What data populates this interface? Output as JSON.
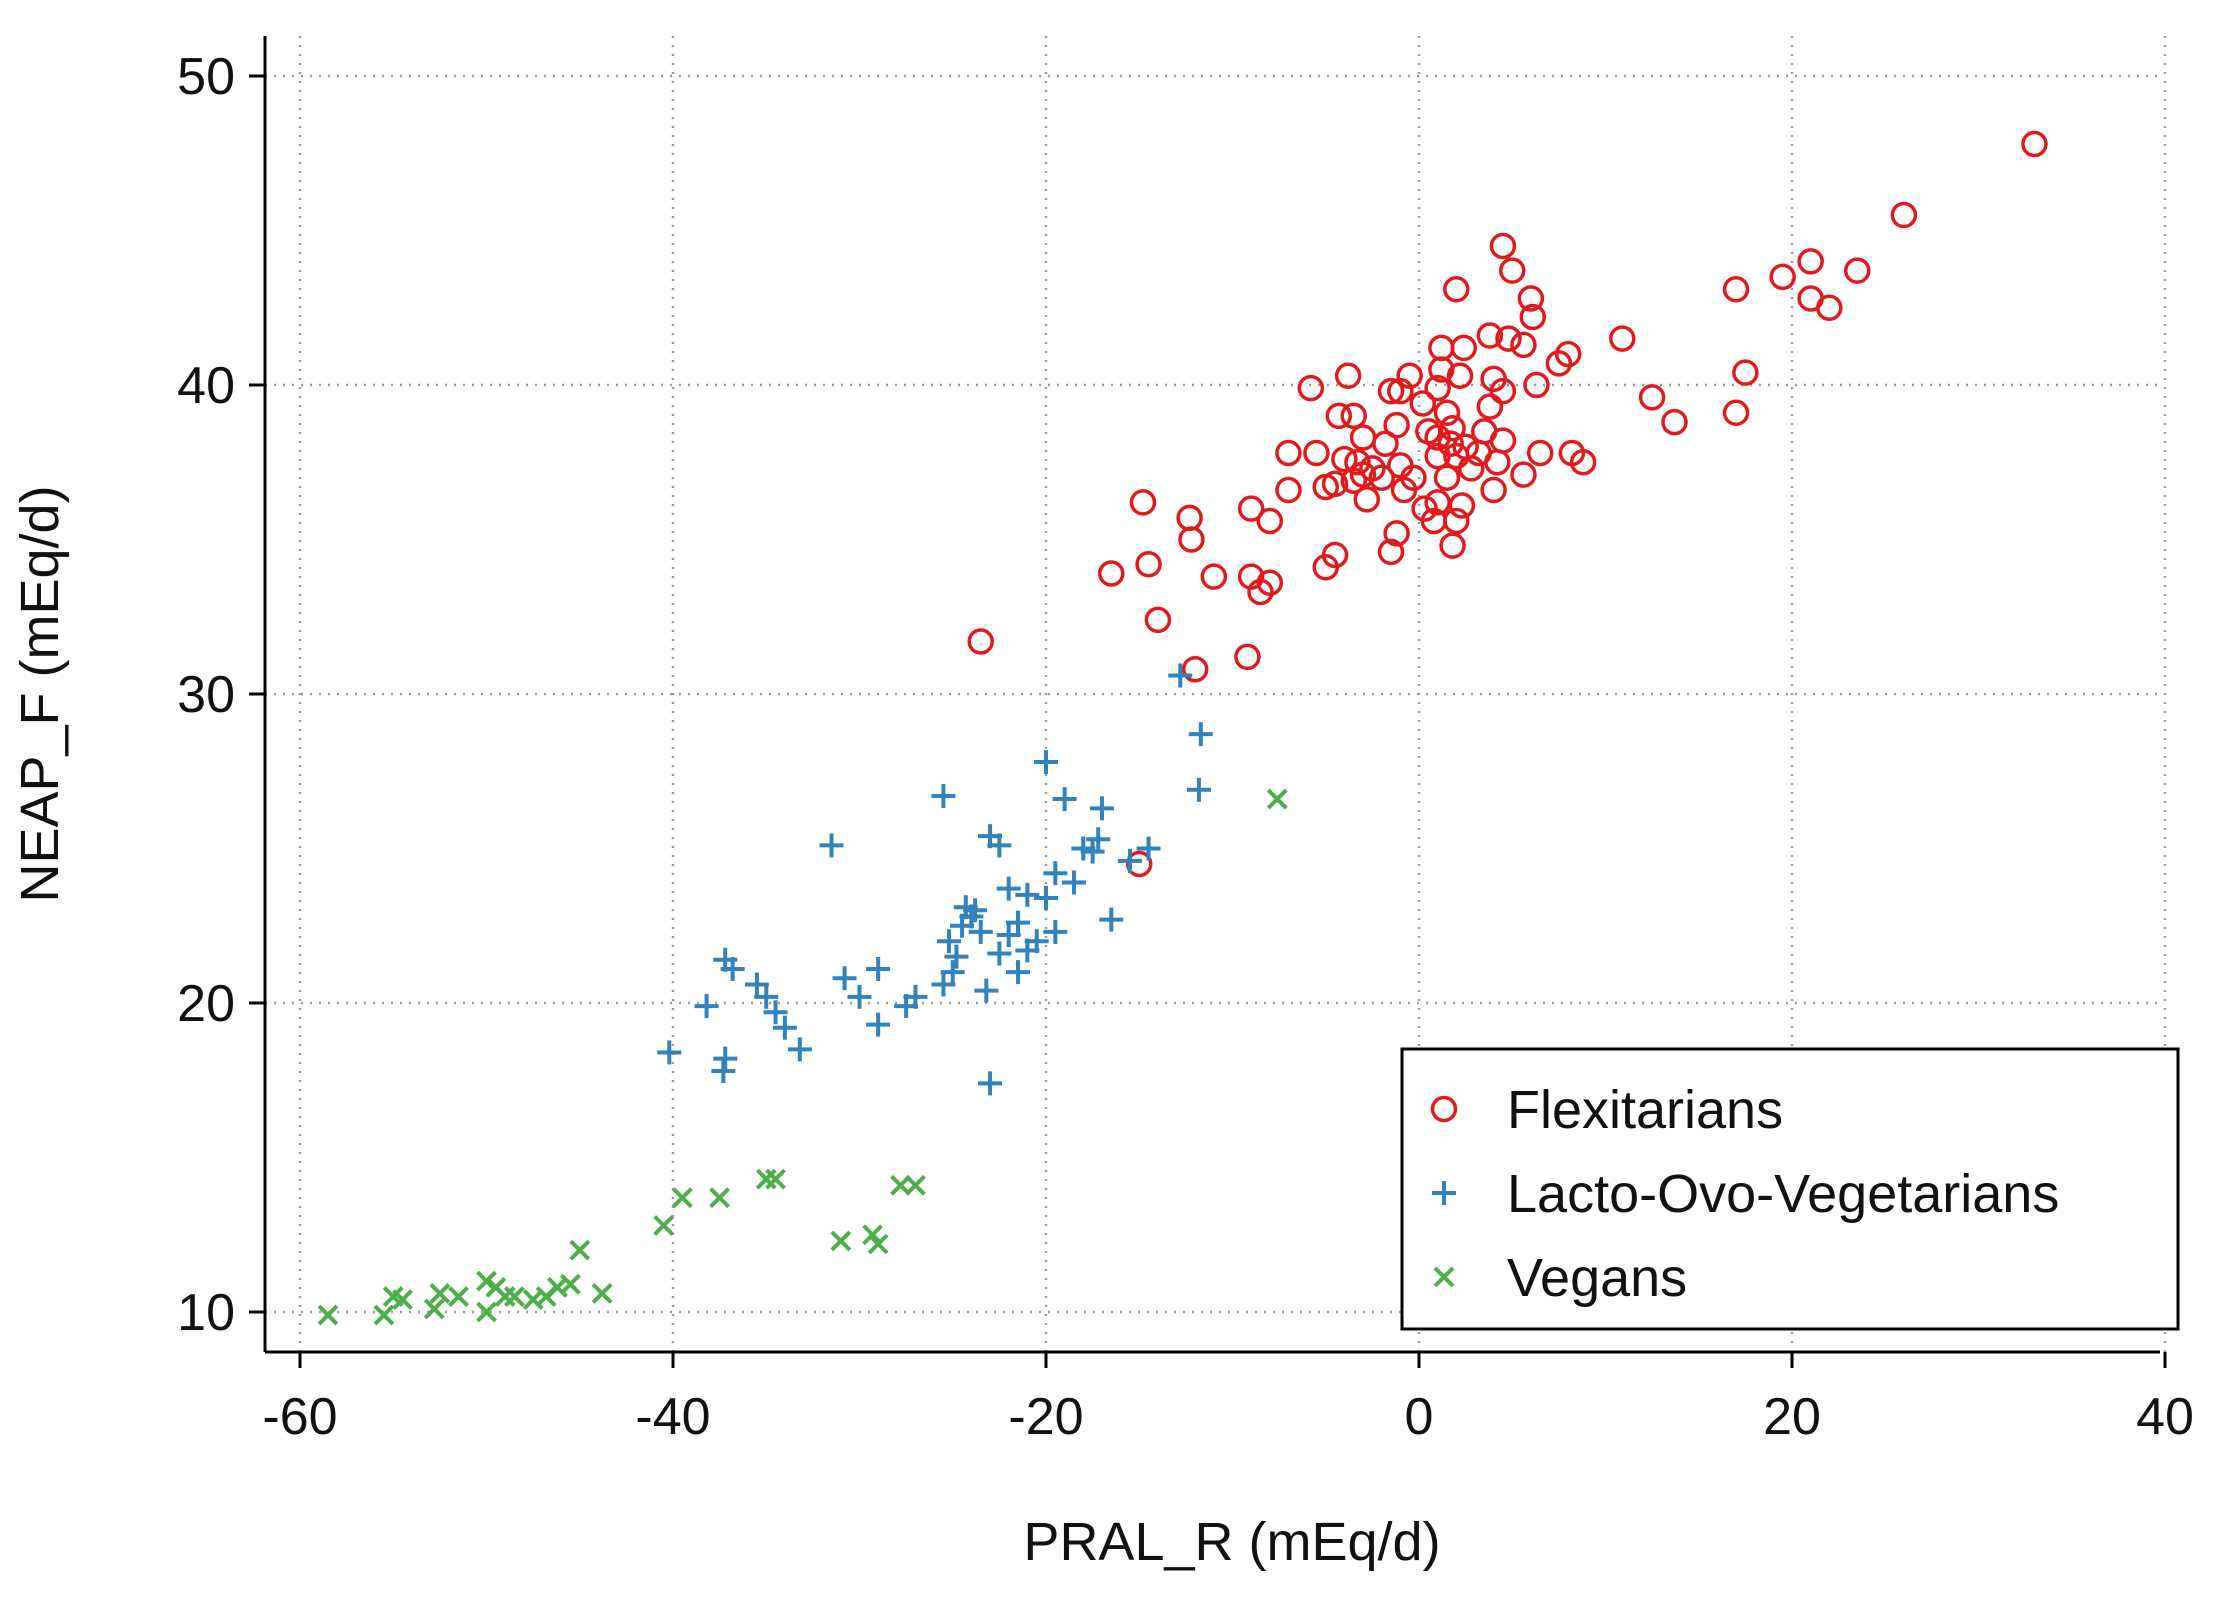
{
  "chart_data": {
    "type": "scatter",
    "xlabel": "PRAL_R (mEq/d)",
    "ylabel": "NEAP_F (mEq/d)",
    "xlim": [
      -62,
      40
    ],
    "ylim": [
      8.5,
      51.5
    ],
    "xticks": [
      -60,
      -40,
      -20,
      0,
      20,
      40
    ],
    "yticks": [
      10,
      20,
      30,
      40,
      50
    ],
    "grid": true,
    "legend_position": "bottom-right",
    "series": [
      {
        "name": "Flexitarians",
        "marker": "circle",
        "color": "#e31a1c",
        "points": [
          [
            33.0,
            47.8
          ],
          [
            26.0,
            45.5
          ],
          [
            23.5,
            43.7
          ],
          [
            22.0,
            42.5
          ],
          [
            21.0,
            44.0
          ],
          [
            21.0,
            42.8
          ],
          [
            19.5,
            43.5
          ],
          [
            17.5,
            40.4
          ],
          [
            17.0,
            43.1
          ],
          [
            17.0,
            39.1
          ],
          [
            13.7,
            38.8
          ],
          [
            12.5,
            39.6
          ],
          [
            10.9,
            41.5
          ],
          [
            8.8,
            37.5
          ],
          [
            8.2,
            37.8
          ],
          [
            8.0,
            41.0
          ],
          [
            7.5,
            40.7
          ],
          [
            6.5,
            37.8
          ],
          [
            6.3,
            40.0
          ],
          [
            6.1,
            42.2
          ],
          [
            6.0,
            42.8
          ],
          [
            5.6,
            37.1
          ],
          [
            5.6,
            41.3
          ],
          [
            5.0,
            43.7
          ],
          [
            4.8,
            41.5
          ],
          [
            4.5,
            44.5
          ],
          [
            4.5,
            39.8
          ],
          [
            4.5,
            38.2
          ],
          [
            4.2,
            37.5
          ],
          [
            4.0,
            40.2
          ],
          [
            4.0,
            36.6
          ],
          [
            3.8,
            41.6
          ],
          [
            3.8,
            39.3
          ],
          [
            3.5,
            38.5
          ],
          [
            3.2,
            37.8
          ],
          [
            2.8,
            37.3
          ],
          [
            2.5,
            38.0
          ],
          [
            2.4,
            41.2
          ],
          [
            2.3,
            36.1
          ],
          [
            2.2,
            40.3
          ],
          [
            2.0,
            37.7
          ],
          [
            2.0,
            35.6
          ],
          [
            2.0,
            43.1
          ],
          [
            1.8,
            34.8
          ],
          [
            1.8,
            38.6
          ],
          [
            1.7,
            38.1
          ],
          [
            1.5,
            39.1
          ],
          [
            1.5,
            37.0
          ],
          [
            1.2,
            40.5
          ],
          [
            1.2,
            41.2
          ],
          [
            1.0,
            38.3
          ],
          [
            1.0,
            36.2
          ],
          [
            1.0,
            39.9
          ],
          [
            1.0,
            37.7
          ],
          [
            0.8,
            35.6
          ],
          [
            0.5,
            38.5
          ],
          [
            0.3,
            36.0
          ],
          [
            0.2,
            39.4
          ],
          [
            -0.3,
            37.0
          ],
          [
            -0.5,
            40.3
          ],
          [
            -0.8,
            36.6
          ],
          [
            -1.0,
            37.4
          ],
          [
            -1.0,
            39.8
          ],
          [
            -1.2,
            35.2
          ],
          [
            -1.2,
            38.7
          ],
          [
            -1.5,
            39.8
          ],
          [
            -1.5,
            34.6
          ],
          [
            -1.8,
            38.1
          ],
          [
            -2.0,
            37.0
          ],
          [
            -2.5,
            37.3
          ],
          [
            -2.8,
            36.3
          ],
          [
            -3.0,
            37.1
          ],
          [
            -3.0,
            38.3
          ],
          [
            -3.3,
            37.5
          ],
          [
            -3.5,
            36.9
          ],
          [
            -3.5,
            39.0
          ],
          [
            -3.8,
            40.3
          ],
          [
            -4.0,
            37.6
          ],
          [
            -4.3,
            39.0
          ],
          [
            -4.5,
            34.5
          ],
          [
            -4.5,
            36.8
          ],
          [
            -5.0,
            34.1
          ],
          [
            -5.0,
            36.7
          ],
          [
            -5.5,
            37.8
          ],
          [
            -5.8,
            39.9
          ],
          [
            -7.0,
            37.8
          ],
          [
            -7.0,
            36.6
          ],
          [
            -8.0,
            33.6
          ],
          [
            -8.5,
            33.3
          ],
          [
            -9.0,
            33.8
          ],
          [
            -8.0,
            35.6
          ],
          [
            -9.2,
            31.2
          ],
          [
            -9.0,
            36.0
          ],
          [
            -11.0,
            33.8
          ],
          [
            -12.0,
            30.8
          ],
          [
            -12.2,
            35.0
          ],
          [
            -12.3,
            35.7
          ],
          [
            -14.0,
            32.4
          ],
          [
            -14.5,
            34.2
          ],
          [
            -14.8,
            36.2
          ],
          [
            -16.5,
            33.9
          ],
          [
            -23.5,
            31.7
          ],
          [
            -15.0,
            24.5
          ]
        ]
      },
      {
        "name": "Lacto-Ovo-Vegetarians",
        "marker": "plus",
        "color": "#3182bd",
        "points": [
          [
            -12.8,
            30.6
          ],
          [
            -11.7,
            28.7
          ],
          [
            -11.8,
            26.9
          ],
          [
            -14.5,
            25.0
          ],
          [
            -15.5,
            24.6
          ],
          [
            -17.0,
            26.3
          ],
          [
            -17.2,
            25.3
          ],
          [
            -17.5,
            24.9
          ],
          [
            -18.0,
            25.0
          ],
          [
            -18.5,
            23.9
          ],
          [
            -19.0,
            26.6
          ],
          [
            -19.5,
            24.2
          ],
          [
            -19.5,
            22.3
          ],
          [
            -20.0,
            27.8
          ],
          [
            -20.0,
            23.4
          ],
          [
            -20.5,
            22.0
          ],
          [
            -21.0,
            23.5
          ],
          [
            -21.0,
            21.7
          ],
          [
            -21.5,
            21.0
          ],
          [
            -22.0,
            23.7
          ],
          [
            -22.0,
            22.2
          ],
          [
            -22.5,
            21.6
          ],
          [
            -22.5,
            25.1
          ],
          [
            -23.0,
            25.4
          ],
          [
            -23.0,
            17.4
          ],
          [
            -23.2,
            20.4
          ],
          [
            -23.5,
            22.3
          ],
          [
            -24.0,
            22.8
          ],
          [
            -24.3,
            23.1
          ],
          [
            -24.5,
            22.5
          ],
          [
            -24.8,
            21.5
          ],
          [
            -25.0,
            21.0
          ],
          [
            -25.2,
            22.0
          ],
          [
            -25.5,
            20.6
          ],
          [
            -25.5,
            26.7
          ],
          [
            -27.0,
            20.2
          ],
          [
            -27.5,
            19.9
          ],
          [
            -29.0,
            19.3
          ],
          [
            -29.0,
            21.1
          ],
          [
            -30.0,
            20.2
          ],
          [
            -30.8,
            20.8
          ],
          [
            -31.5,
            25.1
          ],
          [
            -33.2,
            18.5
          ],
          [
            -34.0,
            19.2
          ],
          [
            -34.5,
            19.7
          ],
          [
            -35.0,
            20.2
          ],
          [
            -35.5,
            20.6
          ],
          [
            -36.8,
            21.1
          ],
          [
            -37.2,
            21.4
          ],
          [
            -37.2,
            18.2
          ],
          [
            -37.3,
            17.8
          ],
          [
            -38.2,
            19.9
          ],
          [
            -40.2,
            18.4
          ],
          [
            -16.5,
            22.7
          ],
          [
            -21.5,
            22.6
          ],
          [
            -23.8,
            23.0
          ]
        ]
      },
      {
        "name": "Vegans",
        "marker": "cross",
        "color": "#4daf4a",
        "points": [
          [
            -7.6,
            26.6
          ],
          [
            -27.0,
            14.1
          ],
          [
            -27.8,
            14.1
          ],
          [
            -29.0,
            12.2
          ],
          [
            -29.3,
            12.5
          ],
          [
            -31.0,
            12.3
          ],
          [
            -34.5,
            14.3
          ],
          [
            -35.0,
            14.3
          ],
          [
            -37.5,
            13.7
          ],
          [
            -39.5,
            13.7
          ],
          [
            -40.5,
            12.8
          ],
          [
            -43.8,
            10.6
          ],
          [
            -45.0,
            12.0
          ],
          [
            -45.5,
            10.9
          ],
          [
            -46.2,
            10.8
          ],
          [
            -46.8,
            10.5
          ],
          [
            -47.5,
            10.4
          ],
          [
            -48.5,
            10.5
          ],
          [
            -49.0,
            10.5
          ],
          [
            -49.5,
            10.8
          ],
          [
            -50.0,
            11.0
          ],
          [
            -50.0,
            10.0
          ],
          [
            -51.5,
            10.5
          ],
          [
            -52.5,
            10.6
          ],
          [
            -52.8,
            10.1
          ],
          [
            -54.5,
            10.4
          ],
          [
            -55.0,
            10.5
          ],
          [
            -55.5,
            9.9
          ],
          [
            -58.5,
            9.9
          ]
        ]
      }
    ]
  }
}
